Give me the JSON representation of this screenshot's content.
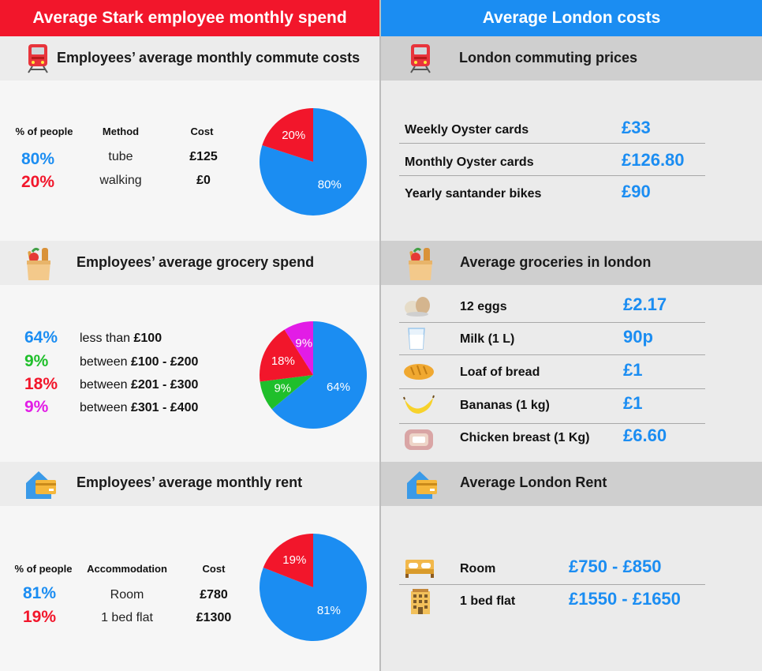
{
  "colors": {
    "red": "#f2162b",
    "blue": "#1b8df2",
    "green": "#1fbf2b",
    "magenta": "#e21ce6"
  },
  "left": {
    "title": "Average Stark employee monthly spend",
    "commute": {
      "title": "Employees’ average monthly commute costs",
      "headers": {
        "pct": "% of people",
        "method": "Method",
        "cost": "Cost"
      },
      "rows": [
        {
          "pct": "80%",
          "method": "tube",
          "cost": "£125"
        },
        {
          "pct": "20%",
          "method": "walking",
          "cost": "£0"
        }
      ]
    },
    "grocery": {
      "title": "Employees’ average grocery spend",
      "rows": [
        {
          "pct": "64%",
          "prefix": "less than",
          "amount": "£100"
        },
        {
          "pct": "9%",
          "prefix": "between",
          "amount": "£100 - £200"
        },
        {
          "pct": "18%",
          "prefix": "between",
          "amount": "£201 - £300"
        },
        {
          "pct": "9%",
          "prefix": "between",
          "amount": "£301 - £400"
        }
      ]
    },
    "rent": {
      "title": "Employees’ average monthly rent",
      "headers": {
        "pct": "% of people",
        "accommodation": "Accommodation",
        "cost": "Cost"
      },
      "rows": [
        {
          "pct": "81%",
          "type": "Room",
          "cost": "£780"
        },
        {
          "pct": "19%",
          "type": "1 bed flat",
          "cost": "£1300"
        }
      ]
    }
  },
  "right": {
    "title": "Average London costs",
    "commute": {
      "title": "London commuting prices",
      "rows": [
        {
          "label": "Weekly Oyster cards",
          "value": "£33"
        },
        {
          "label": "Monthly Oyster cards",
          "value": "£126.80"
        },
        {
          "label": "Yearly santander bikes",
          "value": "£90"
        }
      ]
    },
    "groceries": {
      "title": "Average groceries in london",
      "rows": [
        {
          "label": "12 eggs",
          "value": "£2.17",
          "icon": "eggs-icon"
        },
        {
          "label": "Milk (1 L)",
          "value": "90p",
          "icon": "milk-icon"
        },
        {
          "label": "Loaf of bread",
          "value": "£1",
          "icon": "bread-icon"
        },
        {
          "label": "Bananas (1 kg)",
          "value": "£1",
          "icon": "banana-icon"
        },
        {
          "label": "Chicken breast (1 Kg)",
          "value": "£6.60",
          "icon": "chicken-icon"
        }
      ]
    },
    "rent": {
      "title": "Average London Rent",
      "rows": [
        {
          "label": "Room",
          "value": "£750 - £850",
          "icon": "bed-icon"
        },
        {
          "label": "1 bed flat",
          "value": "£1550 - £1650",
          "icon": "building-icon"
        }
      ]
    }
  },
  "chart_data": [
    {
      "type": "pie",
      "slices": [
        {
          "label": "80%",
          "value": 80,
          "color": "#1b8df2"
        },
        {
          "label": "20%",
          "value": 20,
          "color": "#f2162b"
        }
      ]
    },
    {
      "type": "pie",
      "slices": [
        {
          "label": "64%",
          "value": 64,
          "color": "#1b8df2"
        },
        {
          "label": "9%",
          "value": 9,
          "color": "#1fbf2b"
        },
        {
          "label": "18%",
          "value": 18,
          "color": "#f2162b"
        },
        {
          "label": "9%",
          "value": 9,
          "color": "#e21ce6"
        }
      ]
    },
    {
      "type": "pie",
      "slices": [
        {
          "label": "81%",
          "value": 81,
          "color": "#1b8df2"
        },
        {
          "label": "19%",
          "value": 19,
          "color": "#f2162b"
        }
      ]
    }
  ]
}
